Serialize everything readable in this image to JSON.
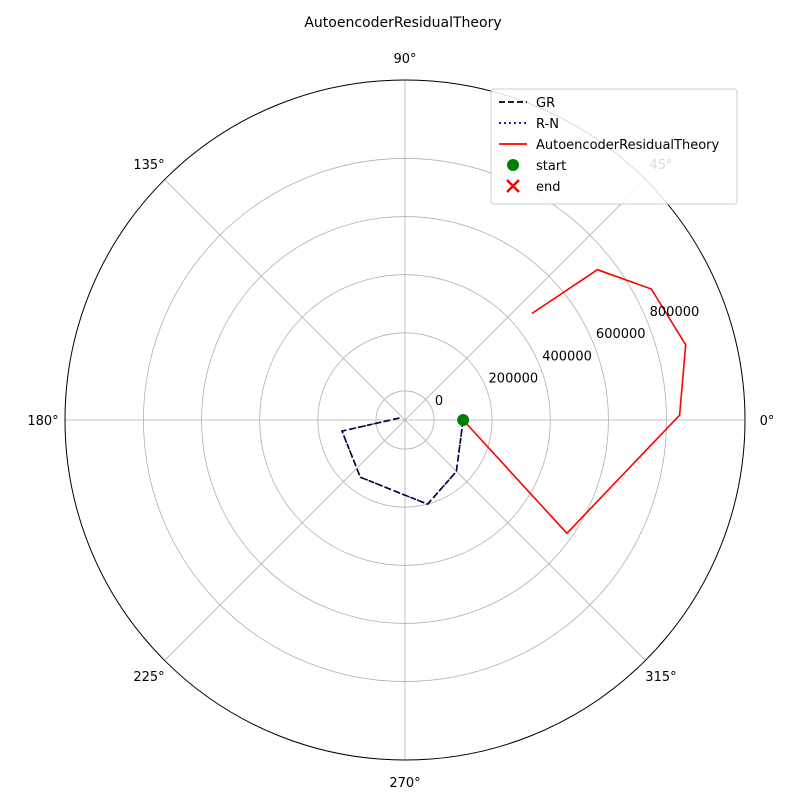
{
  "chart_data": {
    "type": "line",
    "projection": "polar",
    "title": "AutoencoderResidualTheory",
    "theta_unit": "degrees",
    "theta_tick_labels": [
      "0°",
      "45°",
      "90°",
      "135°",
      "180°",
      "225°",
      "270°",
      "315°"
    ],
    "r_tick_labels": [
      "0",
      "200000",
      "400000",
      "600000",
      "800000"
    ],
    "r_ticks": [
      0,
      200000,
      400000,
      600000,
      800000
    ],
    "rlim": [
      -100000,
      1070000
    ],
    "grid": true,
    "legend_position": "top-right",
    "series": [
      {
        "name": "GR",
        "color": "#000000",
        "style": "dashed",
        "points": [
          {
            "theta": 0,
            "r": 100000
          },
          {
            "theta": -45,
            "r": 150000
          },
          {
            "theta": -75,
            "r": 200000
          },
          {
            "theta": -128,
            "r": 150000
          },
          {
            "theta": -170,
            "r": 120000
          },
          {
            "theta": 160,
            "r": -80000
          }
        ]
      },
      {
        "name": "R-N",
        "color": "#00008b",
        "style": "dotted",
        "points": [
          {
            "theta": 0,
            "r": 100000
          },
          {
            "theta": -45,
            "r": 150000
          },
          {
            "theta": -75,
            "r": 200000
          },
          {
            "theta": -128,
            "r": 150000
          },
          {
            "theta": -170,
            "r": 120000
          },
          {
            "theta": 160,
            "r": -80000
          }
        ]
      },
      {
        "name": "AutoencoderResidualTheory",
        "color": "#ff0000",
        "style": "solid",
        "points": [
          {
            "theta": 0,
            "r": 100000
          },
          {
            "theta": -35,
            "r": 580000
          },
          {
            "theta": 1,
            "r": 845000
          },
          {
            "theta": 15,
            "r": 900000
          },
          {
            "theta": 28,
            "r": 860000
          },
          {
            "theta": 38,
            "r": 740000
          },
          {
            "theta": 40,
            "r": 470000
          }
        ]
      }
    ],
    "markers": [
      {
        "name": "start",
        "color": "#008000",
        "symbol": "circle",
        "theta": 0,
        "r": 100000
      },
      {
        "name": "end",
        "color": "#ff0000",
        "symbol": "x",
        "theta": null,
        "r": null
      }
    ]
  }
}
